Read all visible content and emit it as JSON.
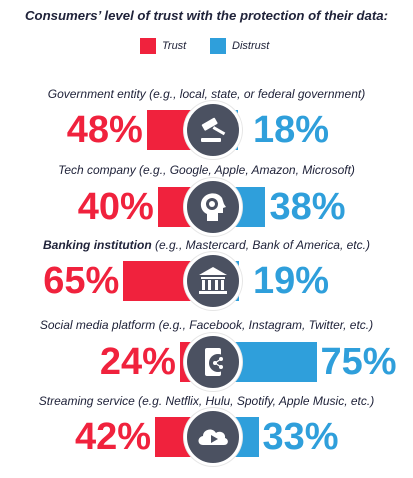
{
  "chart_data": {
    "type": "bar",
    "title": "Consumers’ level of trust with the protection of their data:",
    "series": [
      {
        "name": "Trust",
        "color": "#f0223d",
        "values": [
          48,
          40,
          65,
          24,
          42
        ]
      },
      {
        "name": "Distrust",
        "color": "#2f9fdb",
        "values": [
          18,
          38,
          19,
          75,
          33
        ]
      }
    ],
    "categories": [
      {
        "bold": "",
        "text": "Government entity (e.g., local, state, or federal government)",
        "icon": "gavel-icon"
      },
      {
        "bold": "",
        "text": "Tech company (e.g., Google, Apple, Amazon, Microsoft)",
        "icon": "head-gear-icon"
      },
      {
        "bold": "Banking institution",
        "text": " (e.g., Mastercard, Bank of America, etc.)",
        "icon": "bank-icon"
      },
      {
        "bold": "",
        "text": "Social media platform (e.g., Facebook, Instagram, Twitter, etc.)",
        "icon": "phone-share-icon"
      },
      {
        "bold": "",
        "text": "Streaming service (e.g. Netflix, Hulu, Spotify, Apple Music, etc.)",
        "icon": "cloud-play-icon"
      }
    ],
    "labels_trust": [
      "48%",
      "40%",
      "65%",
      "24%",
      "42%"
    ],
    "labels_distrust": [
      "18%",
      "38%",
      "19%",
      "75%",
      "33%"
    ]
  }
}
